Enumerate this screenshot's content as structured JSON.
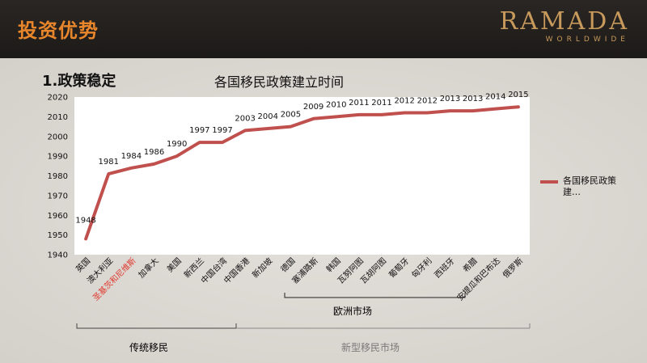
{
  "header": {
    "title": "投资优势"
  },
  "logo": {
    "main": "RAMADA",
    "sub": "WORLDWIDE"
  },
  "section": {
    "heading": "1.政策稳定"
  },
  "chart_data": {
    "type": "line",
    "title": "各国移民政策建立时间",
    "categories": [
      "英国",
      "澳大利亚",
      "圣基茨和尼维斯",
      "加拿大",
      "美国",
      "新西兰",
      "中国台湾",
      "中国香港",
      "新加坡",
      "德国",
      "塞浦路斯",
      "韩国",
      "瓦努阿图",
      "瓦胡阿图",
      "葡萄牙",
      "匈牙利",
      "西班牙",
      "希腊",
      "安提瓜和巴布达",
      "俄罗斯"
    ],
    "highlight_label": "圣基茨和尼维斯",
    "series": [
      {
        "name": "各国移民政策建…",
        "values": [
          1948,
          1981,
          1984,
          1986,
          1990,
          1997,
          1997,
          2003,
          2004,
          2005,
          2009,
          2010,
          2011,
          2011,
          2012,
          2012,
          2013,
          2013,
          2014,
          2015
        ]
      }
    ],
    "point_labels": [
      "1948",
      "1981",
      "1984",
      "1986",
      "1990",
      "1997",
      "1997",
      "2003",
      "2004",
      "2005",
      "2009",
      "2010",
      "2011",
      "2011",
      "2012",
      "2012",
      "2013",
      "2013",
      "2014",
      "2015"
    ],
    "ylim": [
      1940,
      2020
    ],
    "yticks": [
      "1940",
      "1950",
      "1960",
      "1970",
      "1980",
      "1990",
      "2000",
      "2010",
      "2020"
    ],
    "grid": false,
    "legend": "right",
    "colors": {
      "line": "#c0504d",
      "plot_bg": "#ffffff",
      "highlight": "#e03a2f"
    }
  },
  "groups": [
    {
      "label": "欧洲市场",
      "color": "#111111"
    },
    {
      "label": "传统移民",
      "color": "#111111"
    },
    {
      "label": "新型移民市场",
      "color": "#7a7a7a"
    }
  ]
}
